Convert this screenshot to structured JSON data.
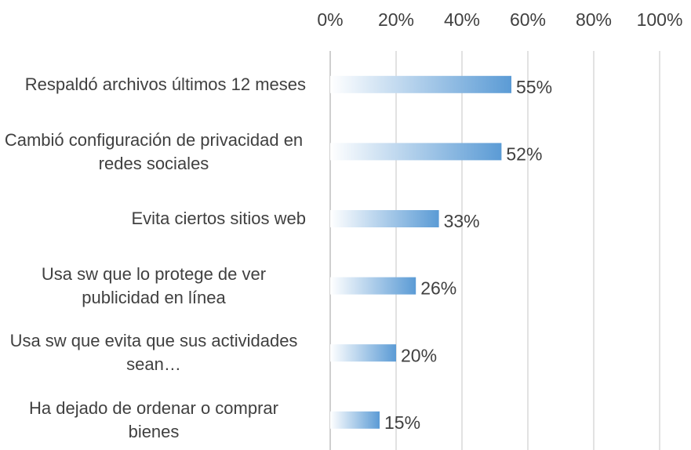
{
  "chart_data": {
    "type": "barh",
    "categories": [
      "Respaldó archivos últimos 12 meses",
      "Cambió configuración de privacidad en redes sociales",
      "Evita ciertos sitios web",
      "Usa sw que lo protege de ver publicidad en línea",
      "Usa sw que evita que sus actividades sean…",
      "Ha dejado de ordenar o comprar bienes"
    ],
    "values": [
      55,
      52,
      33,
      26,
      20,
      15
    ],
    "value_labels": [
      "55%",
      "52%",
      "33%",
      "26%",
      "20%",
      "15%"
    ],
    "color": "#5b9bd5",
    "xlim": [
      0,
      100
    ],
    "xticks": [
      {
        "value": 0,
        "label": "0%"
      },
      {
        "value": 20,
        "label": "20%"
      },
      {
        "value": 40,
        "label": "40%"
      },
      {
        "value": 60,
        "label": "60%"
      },
      {
        "value": 80,
        "label": "80%"
      },
      {
        "value": 100,
        "label": "100%"
      }
    ],
    "grid": true
  }
}
